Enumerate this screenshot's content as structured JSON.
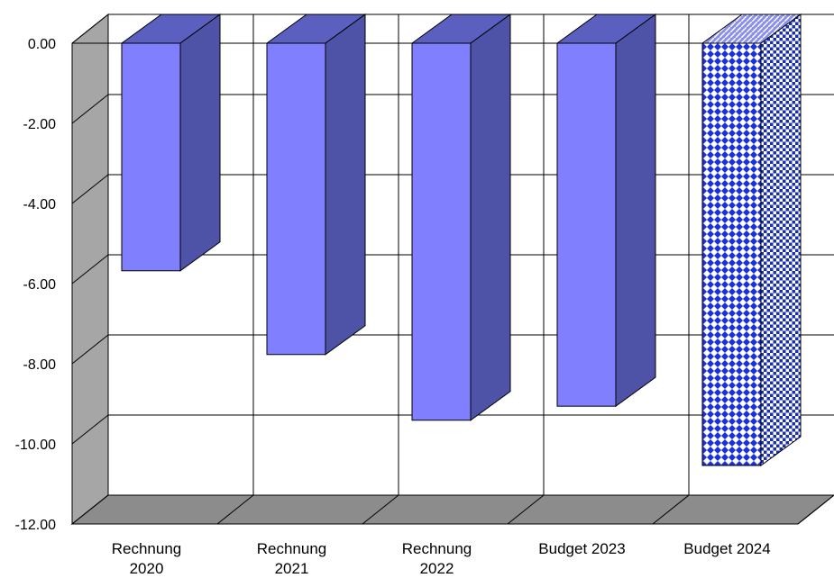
{
  "chart_data": {
    "type": "bar",
    "title": "",
    "xlabel": "",
    "ylabel": "",
    "ylim": [
      -12,
      0
    ],
    "y_ticks": [
      "0.00",
      "-2.00",
      "-4.00",
      "-6.00",
      "-8.00",
      "-10.00",
      "-12.00"
    ],
    "y_tick_values": [
      0,
      -2,
      -4,
      -6,
      -8,
      -10,
      -12
    ],
    "categories": [
      [
        "Rechnung",
        "2020"
      ],
      [
        "Rechnung",
        "2021"
      ],
      [
        "Rechnung",
        "2022"
      ],
      [
        "Budget 2023"
      ],
      [
        "Budget 2024"
      ]
    ],
    "values": [
      -5.68,
      -7.77,
      -9.41,
      -9.06,
      -10.54
    ],
    "bar_styles": [
      "solid",
      "solid",
      "solid",
      "solid",
      "checkered"
    ],
    "grid": true,
    "three_d": true,
    "legend": "none",
    "colors": {
      "bar_front": "#8080ff",
      "bar_side": "#4f53a8",
      "bar_top": "#5b5fc0",
      "pattern_blue": "#1a30e0",
      "pattern_white": "#ffffff",
      "wall_left": "#a6a6a6",
      "floor": "#8c8c8c",
      "gridline": "#000000"
    }
  }
}
